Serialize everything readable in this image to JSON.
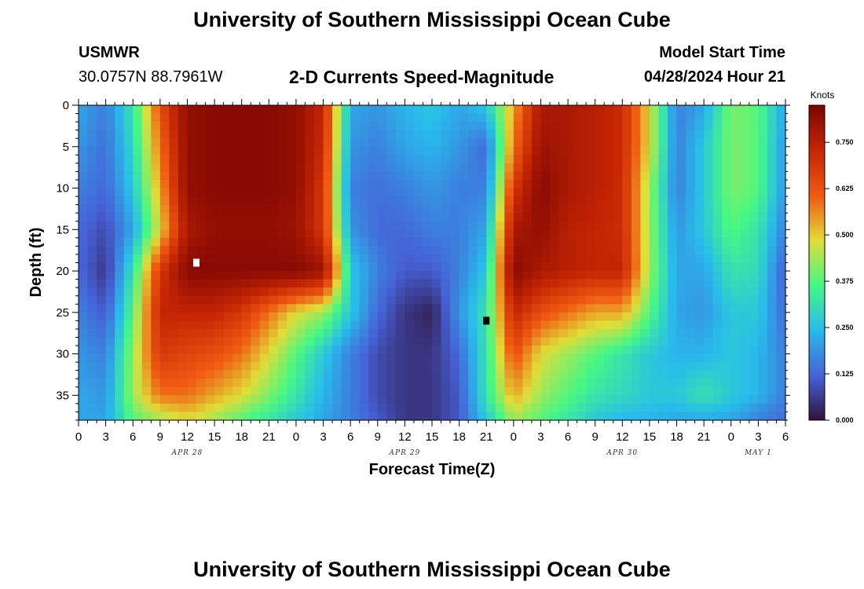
{
  "header": {
    "title": "University of Southern Mississippi Ocean Cube",
    "station_name": "USMWR",
    "station_coords": "30.0757N  88.7961W",
    "plot_title": "2-D Currents Speed-Magnitude",
    "model_start_label": "Model Start Time",
    "model_start_value": "04/28/2024 Hour 21"
  },
  "footer": {
    "title": "University of Southern Mississippi Ocean Cube"
  },
  "chart_data": {
    "type": "heatmap",
    "title": "2-D Currents Speed-Magnitude",
    "xlabel": "Forecast Time(Z)",
    "ylabel": "Depth (ft)",
    "x_tick_labels": [
      "0",
      "3",
      "6",
      "9",
      "12",
      "15",
      "18",
      "21",
      "0",
      "3",
      "6",
      "9",
      "12",
      "15",
      "18",
      "21",
      "0",
      "3",
      "6",
      "9",
      "12",
      "15",
      "18",
      "21",
      "0",
      "3",
      "6"
    ],
    "x_date_labels": [
      {
        "label": "APR 28",
        "at_tick": 4
      },
      {
        "label": "APR 29",
        "at_tick": 12
      },
      {
        "label": "APR 30",
        "at_tick": 20
      },
      {
        "label": "MAY 1",
        "at_tick": 25
      }
    ],
    "y_ticks": [
      0,
      5,
      10,
      15,
      20,
      25,
      30,
      35
    ],
    "ylim": [
      38,
      0
    ],
    "xlim_hours": [
      0,
      78
    ],
    "colorbar": {
      "label": "Knots",
      "ticks": [
        "0.000",
        "0.125",
        "0.250",
        "0.375",
        "0.500",
        "0.625",
        "0.750"
      ],
      "range": [
        0,
        0.85
      ],
      "colors": [
        "#30123b",
        "#3e9bfe",
        "#46f884",
        "#e1dd37",
        "#f05b12",
        "#7a0403"
      ]
    },
    "speed_grid": {
      "hour_columns": [
        0,
        3,
        6,
        9,
        12,
        15,
        18,
        21,
        24,
        27,
        30,
        33,
        36,
        39,
        42,
        45,
        48,
        51,
        54,
        57,
        60,
        63,
        66,
        69,
        72,
        75,
        78
      ],
      "depth_rows": [
        0,
        5,
        10,
        15,
        20,
        25,
        30,
        35,
        38
      ],
      "values": [
        [
          0.2,
          0.15,
          0.3,
          0.6,
          0.8,
          0.82,
          0.82,
          0.82,
          0.8,
          0.7,
          0.2,
          0.18,
          0.22,
          0.25,
          0.2,
          0.25,
          0.5,
          0.75,
          0.75,
          0.72,
          0.68,
          0.45,
          0.15,
          0.2,
          0.38,
          0.35,
          0.2
        ],
        [
          0.18,
          0.13,
          0.28,
          0.55,
          0.8,
          0.82,
          0.82,
          0.82,
          0.8,
          0.68,
          0.18,
          0.15,
          0.2,
          0.22,
          0.18,
          0.12,
          0.55,
          0.78,
          0.75,
          0.72,
          0.68,
          0.45,
          0.15,
          0.25,
          0.38,
          0.35,
          0.18
        ],
        [
          0.15,
          0.12,
          0.25,
          0.5,
          0.8,
          0.82,
          0.82,
          0.82,
          0.8,
          0.65,
          0.15,
          0.13,
          0.15,
          0.18,
          0.15,
          0.15,
          0.65,
          0.82,
          0.75,
          0.72,
          0.68,
          0.4,
          0.15,
          0.25,
          0.38,
          0.35,
          0.18
        ],
        [
          0.12,
          0.08,
          0.2,
          0.45,
          0.75,
          0.8,
          0.8,
          0.8,
          0.78,
          0.65,
          0.18,
          0.12,
          0.12,
          0.15,
          0.15,
          0.2,
          0.75,
          0.8,
          0.72,
          0.7,
          0.68,
          0.4,
          0.18,
          0.25,
          0.35,
          0.3,
          0.15
        ],
        [
          0.12,
          0.05,
          0.3,
          0.65,
          0.82,
          0.82,
          0.82,
          0.82,
          0.82,
          0.78,
          0.25,
          0.15,
          0.1,
          0.1,
          0.15,
          0.25,
          0.82,
          0.75,
          0.72,
          0.7,
          0.7,
          0.4,
          0.2,
          0.2,
          0.3,
          0.28,
          0.1
        ],
        [
          0.15,
          0.1,
          0.35,
          0.7,
          0.7,
          0.7,
          0.65,
          0.55,
          0.45,
          0.4,
          0.25,
          0.12,
          0.05,
          0.02,
          0.18,
          0.3,
          0.7,
          0.6,
          0.55,
          0.5,
          0.5,
          0.35,
          0.2,
          0.18,
          0.25,
          0.25,
          0.12
        ],
        [
          0.18,
          0.15,
          0.4,
          0.65,
          0.62,
          0.6,
          0.55,
          0.45,
          0.35,
          0.25,
          0.15,
          0.08,
          0.05,
          0.05,
          0.12,
          0.3,
          0.6,
          0.45,
          0.4,
          0.35,
          0.3,
          0.25,
          0.22,
          0.22,
          0.25,
          0.22,
          0.15
        ],
        [
          0.2,
          0.18,
          0.4,
          0.55,
          0.55,
          0.5,
          0.45,
          0.38,
          0.3,
          0.22,
          0.15,
          0.08,
          0.05,
          0.05,
          0.1,
          0.3,
          0.5,
          0.4,
          0.35,
          0.3,
          0.28,
          0.25,
          0.25,
          0.3,
          0.25,
          0.22,
          0.15
        ],
        [
          0.2,
          0.2,
          0.35,
          0.4,
          0.45,
          0.4,
          0.35,
          0.3,
          0.25,
          0.2,
          0.15,
          0.1,
          0.05,
          0.05,
          0.1,
          0.25,
          0.4,
          0.35,
          0.3,
          0.25,
          0.22,
          0.22,
          0.2,
          0.2,
          0.2,
          0.15,
          0.12
        ]
      ]
    },
    "markers": [
      {
        "hour": 13,
        "depth": 19,
        "color": "#ffffff"
      },
      {
        "hour": 45,
        "depth": 26,
        "color": "#000000"
      }
    ],
    "grid": false,
    "legend": "right"
  }
}
